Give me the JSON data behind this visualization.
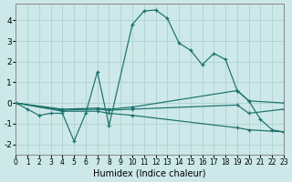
{
  "xlabel": "Humidex (Indice chaleur)",
  "xlim": [
    0,
    23
  ],
  "ylim": [
    -2.5,
    4.8
  ],
  "xticks": [
    0,
    1,
    2,
    3,
    4,
    5,
    6,
    7,
    8,
    9,
    10,
    11,
    12,
    13,
    14,
    15,
    16,
    17,
    18,
    19,
    20,
    21,
    22,
    23
  ],
  "yticks": [
    -2,
    -1,
    0,
    1,
    2,
    3,
    4
  ],
  "background_color": "#cce8e8",
  "grid_color": "#aacccc",
  "line_color": "#1a706a",
  "curve_x": [
    0,
    1,
    2,
    3,
    4,
    5,
    6,
    7,
    8,
    10,
    11,
    12,
    13,
    14,
    15,
    16,
    17,
    18,
    19,
    20,
    21,
    22,
    23
  ],
  "curve_y": [
    0.0,
    -0.3,
    -0.6,
    -0.5,
    -0.5,
    -1.85,
    -0.5,
    1.5,
    -1.1,
    3.8,
    4.45,
    4.5,
    4.1,
    2.9,
    2.55,
    1.85,
    2.4,
    2.1,
    0.6,
    0.1,
    -0.8,
    -1.3,
    -1.4
  ],
  "trend1_x": [
    0,
    4,
    7,
    8,
    10,
    19,
    20,
    23
  ],
  "trend1_y": [
    0.0,
    -0.3,
    -0.25,
    -0.3,
    -0.2,
    0.6,
    0.1,
    0.0
  ],
  "trend2_x": [
    0,
    4,
    7,
    8,
    10,
    19,
    20,
    23
  ],
  "trend2_y": [
    0.0,
    -0.35,
    -0.3,
    -0.35,
    -0.3,
    -0.1,
    -0.5,
    -0.3
  ],
  "trend3_x": [
    0,
    4,
    7,
    8,
    10,
    19,
    20,
    23
  ],
  "trend3_y": [
    0.0,
    -0.4,
    -0.4,
    -0.5,
    -0.6,
    -1.2,
    -1.3,
    -1.4
  ]
}
